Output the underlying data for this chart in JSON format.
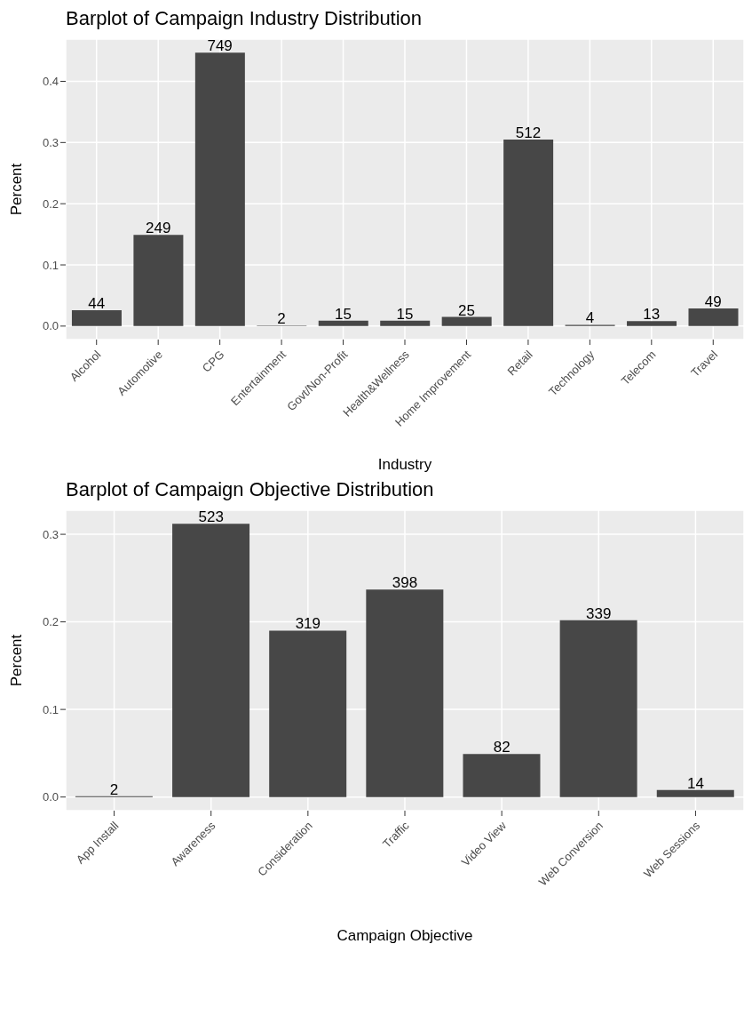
{
  "chart_data": [
    {
      "type": "bar",
      "title": "Barplot of Campaign Industry Distribution",
      "xlabel": "Industry",
      "ylabel": "Percent",
      "categories": [
        "Alcohol",
        "Automotive",
        "CPG",
        "Entertainment",
        "Govt/Non-Profit",
        "Health&Wellness",
        "Home Improvement",
        "Retail",
        "Technology",
        "Telecom",
        "Travel"
      ],
      "values": [
        0.026,
        0.149,
        0.447,
        0.001,
        0.009,
        0.009,
        0.015,
        0.305,
        0.002,
        0.008,
        0.029
      ],
      "annotations": [
        {
          "text": "44",
          "x": "Alcohol",
          "y": 0.026
        },
        {
          "text": "249",
          "x": "Automotive",
          "y": 0.149
        },
        {
          "text": "749",
          "x": "CPG",
          "y": 0.447
        },
        {
          "text": "2",
          "x": "Entertainment",
          "y": 0.001
        },
        {
          "text": "15",
          "x": "Govt/Non-Profit",
          "y": 0.009
        },
        {
          "text": "15",
          "x": "Health&Wellness",
          "y": 0.009
        },
        {
          "text": "25",
          "x": "Home Improvement",
          "y": 0.015
        },
        {
          "text": "512",
          "x": "Retail",
          "y": 0.305
        },
        {
          "text": "4",
          "x": "Technology",
          "y": 0.002
        },
        {
          "text": "13",
          "x": "Telecom",
          "y": 0.008
        },
        {
          "text": "49",
          "x": "Travel",
          "y": 0.029
        }
      ],
      "color": "#474747",
      "ylim": [
        -0.022,
        0.469
      ],
      "yticks": [
        {
          "value": 0,
          "label": "0.0"
        },
        0.1,
        0.2,
        0.3,
        0.4
      ],
      "grid": true
    },
    {
      "type": "bar",
      "title": "Barplot of Campaign Objective Distribution",
      "xlabel": "Campaign Objective",
      "ylabel": "Percent",
      "categories": [
        "App Install",
        "Awareness",
        "Consideration",
        "Traffic",
        "Video View",
        "Web Conversion",
        "Web Sessions"
      ],
      "values": [
        0.001,
        0.312,
        0.19,
        0.237,
        0.049,
        0.202,
        0.008
      ],
      "annotations": [
        {
          "text": "2",
          "x": "App Install",
          "y": 0.001
        },
        {
          "text": "523",
          "x": "Awareness",
          "y": 0.312
        },
        {
          "text": "319",
          "x": "Consideration",
          "y": 0.19
        },
        {
          "text": "398",
          "x": "Traffic",
          "y": 0.237
        },
        {
          "text": "82",
          "x": "Video View",
          "y": 0.049
        },
        {
          "text": "339",
          "x": "Web Conversion",
          "y": 0.202
        },
        {
          "text": "14",
          "x": "Web Sessions",
          "y": 0.008
        }
      ],
      "color": "#474747",
      "ylim": [
        -0.0156,
        0.3275
      ],
      "yticks": [
        {
          "value": 0,
          "label": "0.0"
        },
        0.1,
        0.2,
        0.3
      ],
      "grid": true
    }
  ]
}
